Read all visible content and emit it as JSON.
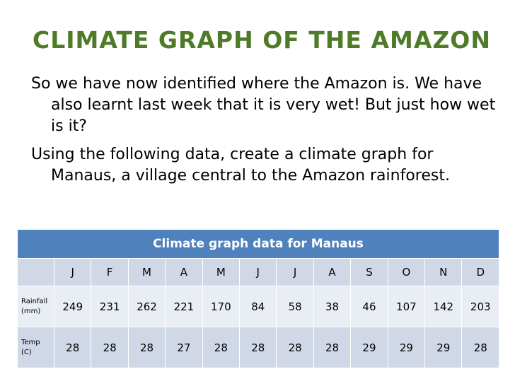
{
  "slide": {
    "title": "Climate Graph of the Amazon",
    "bullets": [
      "So we have now identified where the Amazon is. We have also learnt last week that it is very wet! But just how wet is it?",
      "Using the following data, create a climate graph for Manaus, a village central to the Amazon rainforest."
    ]
  },
  "table": {
    "caption": "Climate graph data for Manaus",
    "months": [
      "J",
      "F",
      "M",
      "A",
      "M",
      "J",
      "J",
      "A",
      "S",
      "O",
      "N",
      "D"
    ],
    "rows": [
      {
        "label_line1": "Rainfall",
        "label_line2": "(mm)",
        "values": [
          "249",
          "231",
          "262",
          "221",
          "170",
          "84",
          "58",
          "38",
          "46",
          "107",
          "142",
          "203"
        ]
      },
      {
        "label_line1": "Temp",
        "label_line2": "(C)",
        "values": [
          "28",
          "28",
          "28",
          "27",
          "28",
          "28",
          "28",
          "28",
          "29",
          "29",
          "29",
          "28"
        ]
      }
    ]
  },
  "colors": {
    "title": "#4f7a28",
    "header": "#4f81bd",
    "band_dark": "#d0d8e8",
    "band_light": "#e9edf4"
  }
}
